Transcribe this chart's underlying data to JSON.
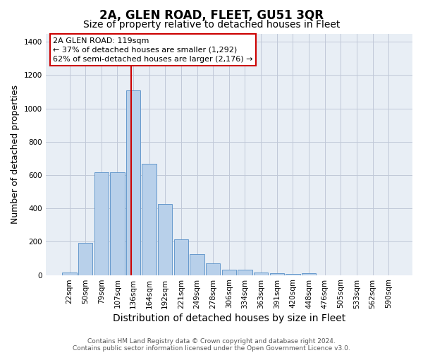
{
  "title": "2A, GLEN ROAD, FLEET, GU51 3QR",
  "subtitle": "Size of property relative to detached houses in Fleet",
  "xlabel": "Distribution of detached houses by size in Fleet",
  "ylabel": "Number of detached properties",
  "categories": [
    "22sqm",
    "50sqm",
    "79sqm",
    "107sqm",
    "136sqm",
    "164sqm",
    "192sqm",
    "221sqm",
    "249sqm",
    "278sqm",
    "306sqm",
    "334sqm",
    "363sqm",
    "391sqm",
    "420sqm",
    "448sqm",
    "476sqm",
    "505sqm",
    "533sqm",
    "562sqm",
    "590sqm"
  ],
  "values": [
    15,
    195,
    615,
    615,
    1110,
    670,
    425,
    215,
    125,
    72,
    33,
    30,
    17,
    13,
    7,
    13,
    0,
    0,
    0,
    0,
    0
  ],
  "bar_color": "#b8d0ea",
  "bar_edge_color": "#6699cc",
  "background_color": "#e8eef5",
  "vline_color": "#cc0000",
  "vline_x_data": 3.85,
  "annotation_text": "2A GLEN ROAD: 119sqm\n← 37% of detached houses are smaller (1,292)\n62% of semi-detached houses are larger (2,176) →",
  "footer1": "Contains HM Land Registry data © Crown copyright and database right 2024.",
  "footer2": "Contains public sector information licensed under the Open Government Licence v3.0.",
  "ylim": [
    0,
    1450
  ],
  "title_fontsize": 12,
  "subtitle_fontsize": 10,
  "xlabel_fontsize": 10,
  "ylabel_fontsize": 9,
  "tick_fontsize": 7.5,
  "annotation_fontsize": 8,
  "footer_fontsize": 6.5
}
